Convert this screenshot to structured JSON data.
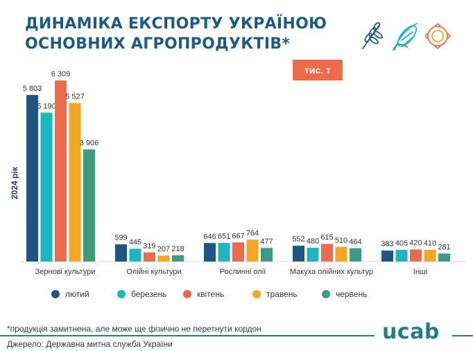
{
  "title": {
    "line1": "Динаміка експорту Україною",
    "line2": "основних агропродуктів*"
  },
  "unit_label": "тис. т",
  "footnote": "*продукція замитнена, але може ще фізично не перетнути кордон",
  "source": "Джерело: Державна митна служба України",
  "logo_text": "ucab",
  "icons": [
    "wheat-icon",
    "corn-icon",
    "sunflower-icon"
  ],
  "chart_data": {
    "type": "bar",
    "ylabel": "2024 рік",
    "categories": [
      "Зернові культури",
      "Олійні культури",
      "Рослинні олії",
      "Макуха олійних культур",
      "Інші"
    ],
    "series": [
      {
        "name": "лютий",
        "color": "#1f5680",
        "values": [
          5803,
          599,
          646,
          552,
          383
        ]
      },
      {
        "name": "березень",
        "color": "#1db5bf",
        "values": [
          5190,
          445,
          651,
          480,
          405
        ]
      },
      {
        "name": "квітень",
        "color": "#ee6a4a",
        "values": [
          6309,
          319,
          667,
          615,
          420
        ]
      },
      {
        "name": "травень",
        "color": "#f5a623",
        "values": [
          5527,
          207,
          764,
          510,
          410
        ]
      },
      {
        "name": "червень",
        "color": "#3f9a82",
        "values": [
          3906,
          218,
          477,
          464,
          281
        ]
      }
    ],
    "ylim": [
      0,
      6309
    ],
    "grid": false,
    "legend": "bottom"
  }
}
